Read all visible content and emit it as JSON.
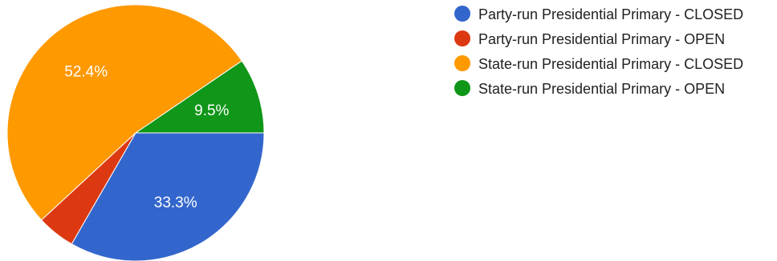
{
  "chart_data": {
    "type": "pie",
    "title": "",
    "legend_placement": "right",
    "slices": [
      {
        "name": "Party-run Presidential Primary - CLOSED",
        "value": 33.3,
        "label": "33.3%",
        "color": "#3366cc"
      },
      {
        "name": "Party-run Presidential Primary - OPEN",
        "value": 4.8,
        "label": "",
        "color": "#dc3912"
      },
      {
        "name": "State-run Presidential Primary - CLOSED",
        "value": 52.4,
        "label": "52.4%",
        "color": "#ff9900"
      },
      {
        "name": "State-run Presidential Primary - OPEN",
        "value": 9.5,
        "label": "9.5%",
        "color": "#109618"
      }
    ]
  }
}
